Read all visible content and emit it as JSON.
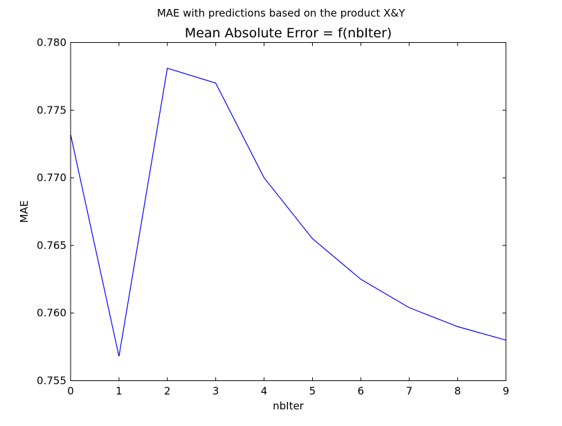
{
  "figure": {
    "suptitle": "MAE with predictions based on the product X&Y"
  },
  "chart_data": {
    "type": "line",
    "title": "Mean Absolute Error = f(nbIter)",
    "xlabel": "nbIter",
    "ylabel": "MAE",
    "xlim": [
      0,
      9
    ],
    "ylim": [
      0.755,
      0.78
    ],
    "xticks": [
      0,
      1,
      2,
      3,
      4,
      5,
      6,
      7,
      8,
      9
    ],
    "xtick_labels": [
      "0",
      "1",
      "2",
      "3",
      "4",
      "5",
      "6",
      "7",
      "8",
      "9"
    ],
    "yticks": [
      0.755,
      0.76,
      0.765,
      0.77,
      0.775,
      0.78
    ],
    "ytick_labels": [
      "0.755",
      "0.760",
      "0.765",
      "0.770",
      "0.775",
      "0.780"
    ],
    "grid": false,
    "series": [
      {
        "color": "#0000ff",
        "x": [
          0,
          1,
          2,
          3,
          4,
          5,
          6,
          7,
          8,
          9
        ],
        "y": [
          0.7732,
          0.7568,
          0.7781,
          0.777,
          0.77,
          0.7655,
          0.7625,
          0.7604,
          0.759,
          0.758
        ]
      }
    ]
  }
}
